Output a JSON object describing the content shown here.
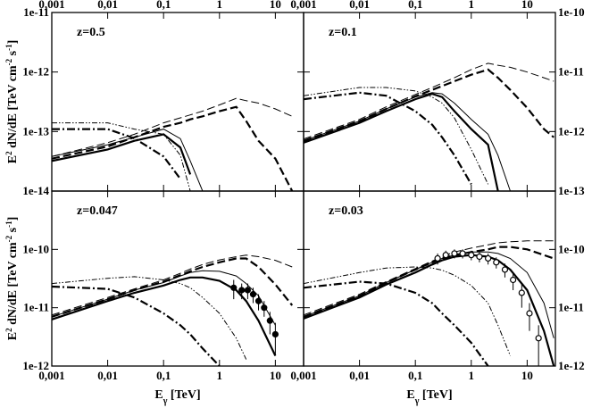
{
  "chart_data": [
    {
      "type": "line",
      "label": "z=0.5",
      "log_x": true,
      "log_y": true,
      "xlim": [
        0.001,
        32
      ],
      "ylim": [
        1e-14,
        1e-11
      ],
      "xticks": [
        {
          "value": 0.001,
          "label": "0,001"
        },
        {
          "value": 0.01,
          "label": "0,01"
        },
        {
          "value": 0.1,
          "label": "0,1"
        },
        1,
        10
      ],
      "yticks": [
        {
          "value": 1e-14,
          "label": "1e-14"
        },
        {
          "value": 1e-13,
          "label": "1e-13"
        },
        {
          "value": 1e-12,
          "label": "1e-12"
        },
        {
          "value": 1e-11,
          "label": "1e-11"
        }
      ],
      "xtick_labels": "top",
      "ytick_labels": "left",
      "ylabel": [
        {
          "text": "E"
        },
        {
          "text": "2",
          "sup": true
        },
        {
          "text": " dN/dE [TeV cm"
        },
        {
          "text": "-2",
          "sup": true
        },
        {
          "text": " s"
        },
        {
          "text": "-1",
          "sup": true
        },
        {
          "text": "]"
        }
      ],
      "x": [
        0.001,
        0.01,
        0.03,
        0.1,
        0.2,
        0.3,
        0.5,
        1,
        2,
        3,
        5,
        10,
        20,
        30
      ],
      "series": [
        {
          "color": "#000",
          "style": "solid",
          "width": 2.2,
          "values": [
            3.2e-14,
            5e-14,
            7e-14,
            9e-14,
            5.4e-14,
            1.9e-14,
            null,
            null,
            null,
            null,
            null,
            null,
            null,
            null
          ]
        },
        {
          "color": "#000",
          "style": "solid",
          "width": 1,
          "values": [
            3.8e-14,
            6e-14,
            8e-14,
            1.1e-13,
            7.6e-14,
            3.2e-14,
            1e-14,
            null,
            null,
            null,
            null,
            null,
            null,
            null
          ]
        },
        {
          "color": "#000",
          "style": "dashed",
          "width": 2.2,
          "values": [
            3.5e-14,
            5.6e-14,
            8e-14,
            1.2e-13,
            1.4e-13,
            1.6e-13,
            1.8e-13,
            2.2e-13,
            2.6e-13,
            1.5e-13,
            7e-14,
            3.5e-14,
            1e-14,
            null
          ]
        },
        {
          "color": "#000",
          "style": "dashed",
          "width": 1,
          "values": [
            3.8e-14,
            6.5e-14,
            9e-14,
            1.4e-13,
            1.7e-13,
            1.9e-13,
            2.2e-13,
            2.8e-13,
            3.6e-13,
            3.3e-13,
            3e-13,
            2.4e-13,
            1.8e-13,
            null
          ]
        },
        {
          "color": "#000",
          "style": "dashdot",
          "width": 2.2,
          "values": [
            1.1e-13,
            1.1e-13,
            7.7e-14,
            3.8e-14,
            1.6e-14,
            null,
            null,
            null,
            null,
            null,
            null,
            null,
            null,
            null
          ]
        },
        {
          "color": "#000",
          "style": "dashdotdot",
          "width": 1,
          "values": [
            1.4e-13,
            1.4e-13,
            1.1e-13,
            9e-14,
            4e-14,
            1e-14,
            null,
            null,
            null,
            null,
            null,
            null,
            null,
            null
          ]
        }
      ]
    },
    {
      "type": "line",
      "label": "z=0.1",
      "log_x": true,
      "log_y": true,
      "xlim": [
        0.001,
        32
      ],
      "ylim": [
        1e-13,
        1e-10
      ],
      "xticks": [
        {
          "value": 0.001,
          "label": "0,001"
        },
        {
          "value": 0.01,
          "label": "0,01"
        },
        {
          "value": 0.1,
          "label": "0,1"
        },
        1,
        10
      ],
      "yticks": [
        {
          "value": 1e-13,
          "label": "1e-13"
        },
        {
          "value": 1e-12,
          "label": "1e-12"
        },
        {
          "value": 1e-11,
          "label": "1e-11"
        },
        {
          "value": 1e-10,
          "label": "1e-10"
        }
      ],
      "xtick_labels": "top",
      "ytick_labels": "right",
      "x": [
        0.001,
        0.01,
        0.03,
        0.1,
        0.2,
        0.3,
        0.5,
        1,
        2,
        3,
        5,
        10,
        20,
        30
      ],
      "series": [
        {
          "color": "#000",
          "style": "solid",
          "width": 2.2,
          "values": [
            6.5e-13,
            1.4e-12,
            2.2e-12,
            3.5e-12,
            4.3e-12,
            3.8e-12,
            2.2e-12,
            1.1e-12,
            6e-13,
            1e-13,
            null,
            null,
            null,
            null
          ]
        },
        {
          "color": "#000",
          "style": "solid",
          "width": 1,
          "values": [
            7e-13,
            1.5e-12,
            2.4e-12,
            3.8e-12,
            4.5e-12,
            4.3e-12,
            3e-12,
            1.6e-12,
            9e-13,
            4e-13,
            1e-13,
            null,
            null,
            null
          ]
        },
        {
          "color": "#000",
          "style": "dashed",
          "width": 2.2,
          "values": [
            7e-13,
            1.5e-12,
            2.4e-12,
            3.9e-12,
            5e-12,
            5.8e-12,
            7e-12,
            9e-12,
            1.1e-11,
            8e-12,
            5e-12,
            2.5e-12,
            1.1e-12,
            8e-13
          ]
        },
        {
          "color": "#000",
          "style": "dashed",
          "width": 1,
          "values": [
            7.5e-13,
            1.6e-12,
            2.6e-12,
            4.2e-12,
            5.5e-12,
            6.5e-12,
            8e-12,
            1.1e-11,
            1.4e-11,
            1.3e-11,
            1.2e-11,
            1e-11,
            8e-12,
            7e-12
          ]
        },
        {
          "color": "#000",
          "style": "dashdot",
          "width": 2.2,
          "values": [
            3.5e-12,
            4.5e-12,
            4e-12,
            2.2e-12,
            1.3e-12,
            8e-13,
            4e-13,
            1.3e-13,
            null,
            null,
            null,
            null,
            null,
            null
          ]
        },
        {
          "color": "#000",
          "style": "dashdotdot",
          "width": 1,
          "values": [
            4e-12,
            5.5e-12,
            5.5e-12,
            4.8e-12,
            3.8e-12,
            3e-12,
            1.7e-12,
            5e-13,
            1.3e-13,
            null,
            null,
            null,
            null,
            null
          ]
        }
      ]
    },
    {
      "type": "line",
      "label": "z=0.047",
      "log_x": true,
      "log_y": true,
      "xlim": [
        0.001,
        32
      ],
      "ylim": [
        1e-12,
        1e-09
      ],
      "xticks": [
        {
          "value": 0.001,
          "label": "0,001"
        },
        {
          "value": 0.01,
          "label": "0,01"
        },
        {
          "value": 0.1,
          "label": "0,1"
        },
        1,
        10
      ],
      "yticks": [
        {
          "value": 1e-12,
          "label": "1e-12"
        },
        {
          "value": 1e-11,
          "label": "1e-11"
        },
        {
          "value": 1e-10,
          "label": "1e-10"
        }
      ],
      "xtick_labels": "bottom",
      "ytick_labels": "left",
      "xlabel": [
        {
          "text": "E"
        },
        {
          "text": "γ",
          "sub": true
        },
        {
          "text": " [TeV]"
        }
      ],
      "ylabel": [
        {
          "text": "E"
        },
        {
          "text": "2",
          "sup": true
        },
        {
          "text": " dN/dE [TeV cm"
        },
        {
          "text": "-2",
          "sup": true
        },
        {
          "text": " s"
        },
        {
          "text": "-1",
          "sup": true
        },
        {
          "text": "]"
        }
      ],
      "x": [
        0.001,
        0.01,
        0.03,
        0.1,
        0.2,
        0.3,
        0.5,
        1,
        2,
        3,
        5,
        10,
        20,
        30
      ],
      "series": [
        {
          "color": "#000",
          "style": "solid",
          "width": 2.2,
          "values": [
            6.3e-12,
            1.3e-11,
            1.8e-11,
            2.4e-11,
            3e-11,
            3.3e-11,
            3.3e-11,
            2.9e-11,
            2e-11,
            1.3e-11,
            6e-12,
            1.5e-12,
            null,
            null
          ]
        },
        {
          "color": "#000",
          "style": "solid",
          "width": 1,
          "values": [
            7e-12,
            1.4e-11,
            2e-11,
            2.7e-11,
            3.5e-11,
            4e-11,
            4.3e-11,
            4.2e-11,
            3.5e-11,
            2.6e-11,
            1.6e-11,
            5e-12,
            null,
            null
          ]
        },
        {
          "color": "#000",
          "style": "dashed",
          "width": 2.2,
          "values": [
            7e-12,
            1.4e-11,
            2e-11,
            2.8e-11,
            3.6e-11,
            4.2e-11,
            5e-11,
            6e-11,
            7e-11,
            7e-11,
            5e-11,
            2.5e-11,
            1.1e-11,
            null
          ]
        },
        {
          "color": "#000",
          "style": "dashed",
          "width": 1,
          "values": [
            7.5e-12,
            1.5e-11,
            2.1e-11,
            3e-11,
            3.9e-11,
            4.6e-11,
            5.5e-11,
            6.6e-11,
            7.5e-11,
            8e-11,
            7.5e-11,
            6.5e-11,
            5e-11,
            null
          ]
        },
        {
          "color": "#000",
          "style": "dashdot",
          "width": 2.2,
          "values": [
            2.3e-11,
            2.1e-11,
            1.5e-11,
            8e-12,
            5e-12,
            3.5e-12,
            2e-12,
            1e-12,
            null,
            null,
            null,
            null,
            null,
            null
          ]
        },
        {
          "color": "#000",
          "style": "dashdotdot",
          "width": 1,
          "values": [
            2.6e-11,
            3.2e-11,
            3.4e-11,
            3e-11,
            2.6e-11,
            2.2e-11,
            1.5e-11,
            8e-12,
            3e-12,
            1.3e-12,
            null,
            null,
            null,
            null
          ]
        }
      ],
      "points": {
        "x": [
          1.8,
          2.5,
          3.2,
          4,
          5,
          6.3,
          8,
          10
        ],
        "values": [
          2.2e-11,
          2e-11,
          2e-11,
          1.7e-11,
          1.3e-11,
          1e-11,
          6e-12,
          3.5e-12
        ],
        "errors": [
          8e-12,
          6e-12,
          6e-12,
          5e-12,
          4e-12,
          3e-12,
          2.5e-12,
          2e-12
        ]
      }
    },
    {
      "type": "line",
      "label": "z=0.03",
      "log_x": true,
      "log_y": true,
      "xlim": [
        0.001,
        32
      ],
      "ylim": [
        1e-12,
        1e-09
      ],
      "xticks": [
        {
          "value": 0.001,
          "label": "0,001"
        },
        {
          "value": 0.01,
          "label": "0,01"
        },
        {
          "value": 0.1,
          "label": "0,1"
        },
        1,
        10
      ],
      "yticks": [
        {
          "value": 1e-12,
          "label": "1e-12"
        },
        {
          "value": 1e-11,
          "label": "1e-11"
        },
        {
          "value": 1e-10,
          "label": "1e-10"
        }
      ],
      "xtick_labels": "bottom",
      "ytick_labels": "right",
      "xlabel": [
        {
          "text": "E"
        },
        {
          "text": "γ",
          "sub": true
        },
        {
          "text": " [TeV]"
        }
      ],
      "x": [
        0.001,
        0.01,
        0.03,
        0.1,
        0.2,
        0.3,
        0.5,
        1,
        2,
        3,
        5,
        10,
        20,
        30
      ],
      "series": [
        {
          "color": "#000",
          "style": "solid",
          "width": 2.2,
          "values": [
            6.5e-12,
            1.5e-11,
            2.5e-11,
            4e-11,
            5.5e-11,
            6.5e-11,
            7.5e-11,
            8e-11,
            7.5e-11,
            6.5e-11,
            4.5e-11,
            2e-11,
            4e-12,
            1e-12
          ]
        },
        {
          "color": "#000",
          "style": "solid",
          "width": 1,
          "values": [
            7e-12,
            1.6e-11,
            2.7e-11,
            4.5e-11,
            6e-11,
            7e-11,
            8e-11,
            9e-11,
            9e-11,
            8.5e-11,
            7e-11,
            4e-11,
            1.2e-11,
            3e-12
          ]
        },
        {
          "color": "#000",
          "style": "dashed",
          "width": 2.2,
          "values": [
            7e-12,
            1.6e-11,
            2.7e-11,
            4.5e-11,
            6e-11,
            7e-11,
            8e-11,
            9e-11,
            1e-10,
            1.1e-10,
            1.1e-10,
            1e-10,
            8e-11,
            7e-11
          ]
        },
        {
          "color": "#000",
          "style": "dashed",
          "width": 1,
          "values": [
            7.5e-12,
            1.7e-11,
            2.8e-11,
            4.7e-11,
            6.3e-11,
            7.5e-11,
            9e-11,
            1.05e-10,
            1.2e-10,
            1.3e-10,
            1.35e-10,
            1.4e-10,
            1.4e-10,
            1.4e-10
          ]
        },
        {
          "color": "#000",
          "style": "dashdot",
          "width": 2.2,
          "values": [
            2.2e-11,
            2.8e-11,
            2.6e-11,
            1.8e-11,
            1.2e-11,
            8e-12,
            5e-12,
            2.5e-12,
            1e-12,
            null,
            null,
            null,
            null,
            null
          ]
        },
        {
          "color": "#000",
          "style": "dashdotdot",
          "width": 1,
          "values": [
            2.6e-11,
            4e-11,
            4.8e-11,
            5e-11,
            4.8e-11,
            4.4e-11,
            3.6e-11,
            2.4e-11,
            1.2e-11,
            5e-12,
            1.5e-12,
            null,
            null,
            null
          ]
        }
      ],
      "points": {
        "x": [
          0.25,
          0.35,
          0.5,
          0.7,
          1,
          1.4,
          2,
          2.8,
          4,
          5.6,
          8,
          11,
          16
        ],
        "values": [
          7e-11,
          8e-11,
          8.5e-11,
          8.5e-11,
          8e-11,
          7.5e-11,
          7e-11,
          6e-11,
          4.5e-11,
          3e-11,
          1.8e-11,
          8e-12,
          3e-12
        ],
        "errors": [
          1.5e-11,
          1.5e-11,
          1.5e-11,
          1.5e-11,
          1.5e-11,
          1.5e-11,
          1.5e-11,
          1.3e-11,
          1.2e-11,
          1e-11,
          8e-12,
          4e-12,
          2e-12
        ]
      }
    }
  ]
}
